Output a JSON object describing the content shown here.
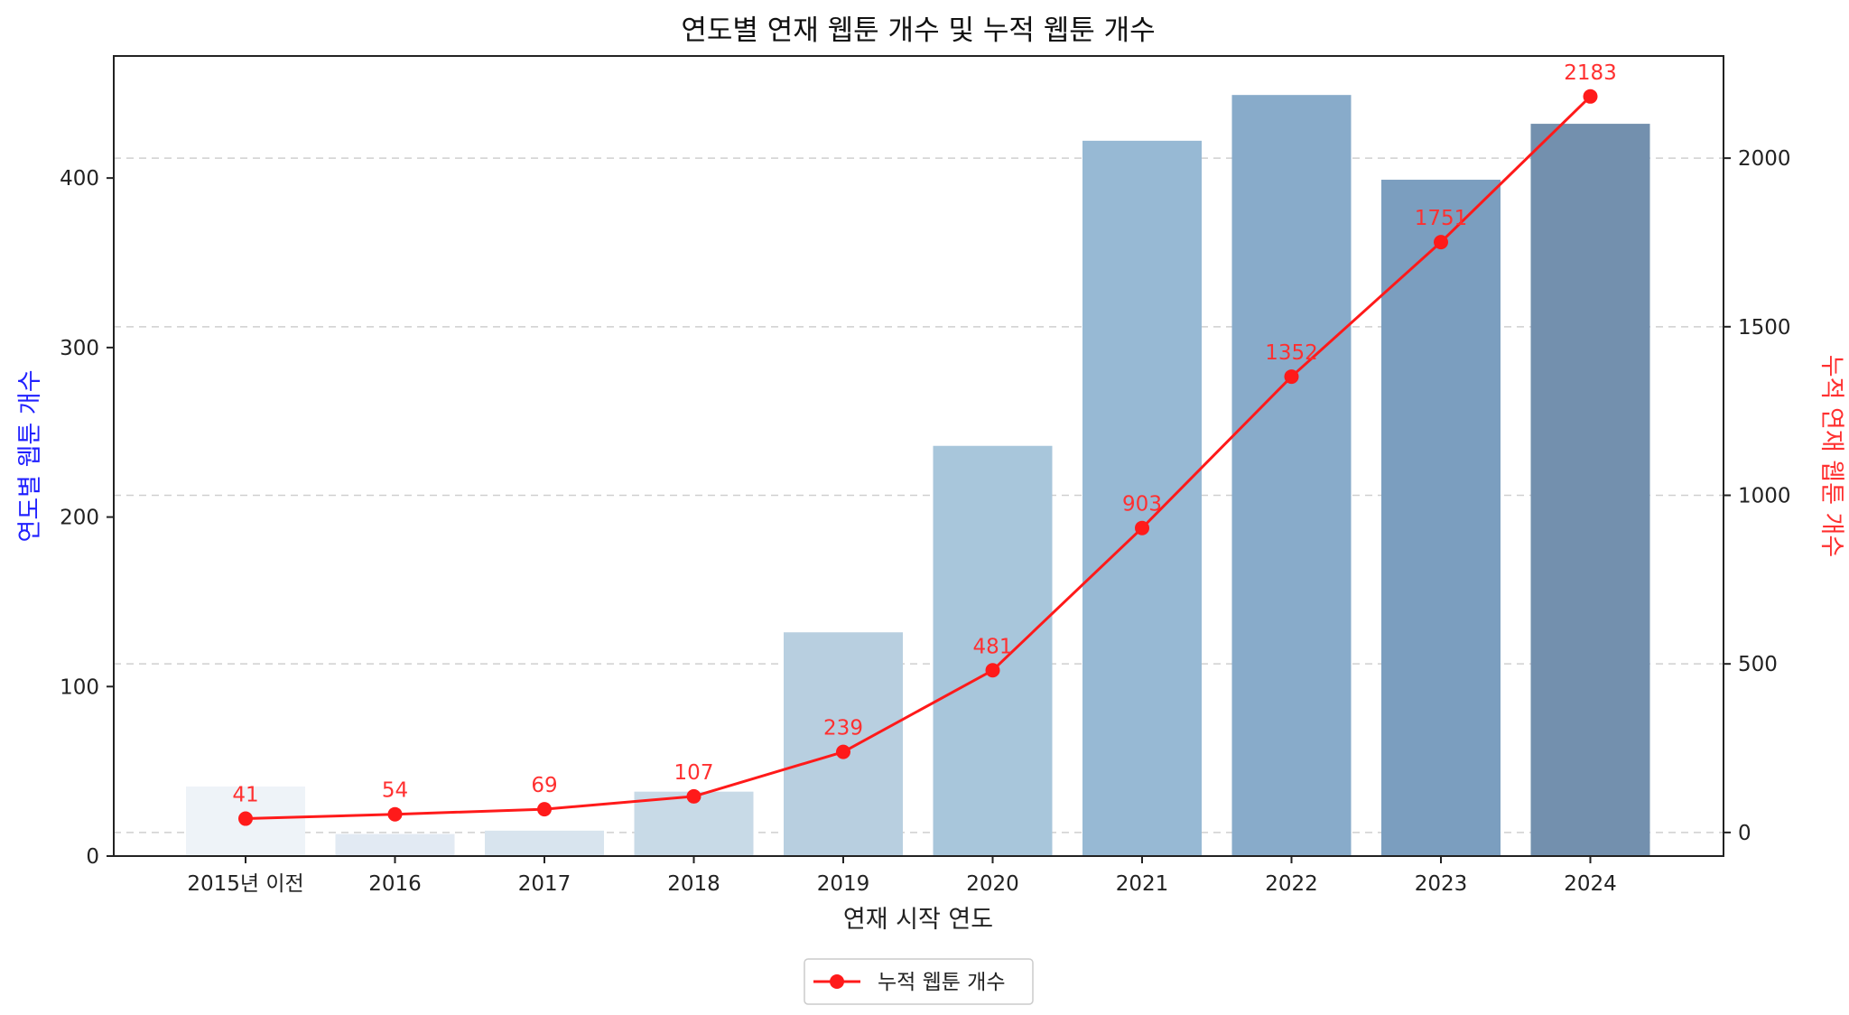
{
  "chart_data": {
    "type": "bar",
    "title": "연도별 연재 웹툰 개수 및 누적 웹툰 개수",
    "xlabel": "연재 시작 연도",
    "ylabel": "연도별 웹툰 개수",
    "y2label": "누적 연재 웹툰 개수",
    "categories": [
      "2015년 이전",
      "2016",
      "2017",
      "2018",
      "2019",
      "2020",
      "2021",
      "2022",
      "2023",
      "2024"
    ],
    "series": [
      {
        "axis": "left",
        "type": "bar",
        "values": [
          41,
          13,
          15,
          38,
          132,
          242,
          422,
          449,
          399,
          432
        ]
      },
      {
        "name": "누적 웹툰 개수",
        "axis": "right",
        "type": "line",
        "values": [
          41,
          54,
          69,
          107,
          239,
          481,
          903,
          1352,
          1751,
          2183
        ]
      }
    ],
    "point_labels": [
      "41",
      "54",
      "69",
      "107",
      "239",
      "481",
      "903",
      "1352",
      "1751",
      "2183"
    ],
    "ylim": [
      0,
      472
    ],
    "y2lim": [
      -70,
      2303
    ],
    "yticks": [
      0,
      100,
      200,
      300,
      400
    ],
    "y2ticks": [
      0,
      500,
      1000,
      1500,
      2000
    ],
    "grid": "horizontal dashed",
    "legend": "bottom-center",
    "colors": {
      "bars": [
        "#eef3f8",
        "#e2eaf3",
        "#d8e4ee",
        "#c8dae7",
        "#b8cfe0",
        "#a8c6db",
        "#97b9d4",
        "#88abca",
        "#7b9ebf",
        "#7390ae"
      ],
      "line": "#ff1a1a",
      "left_axis_label": "#2020ff",
      "right_axis_label": "#ff3030"
    }
  }
}
